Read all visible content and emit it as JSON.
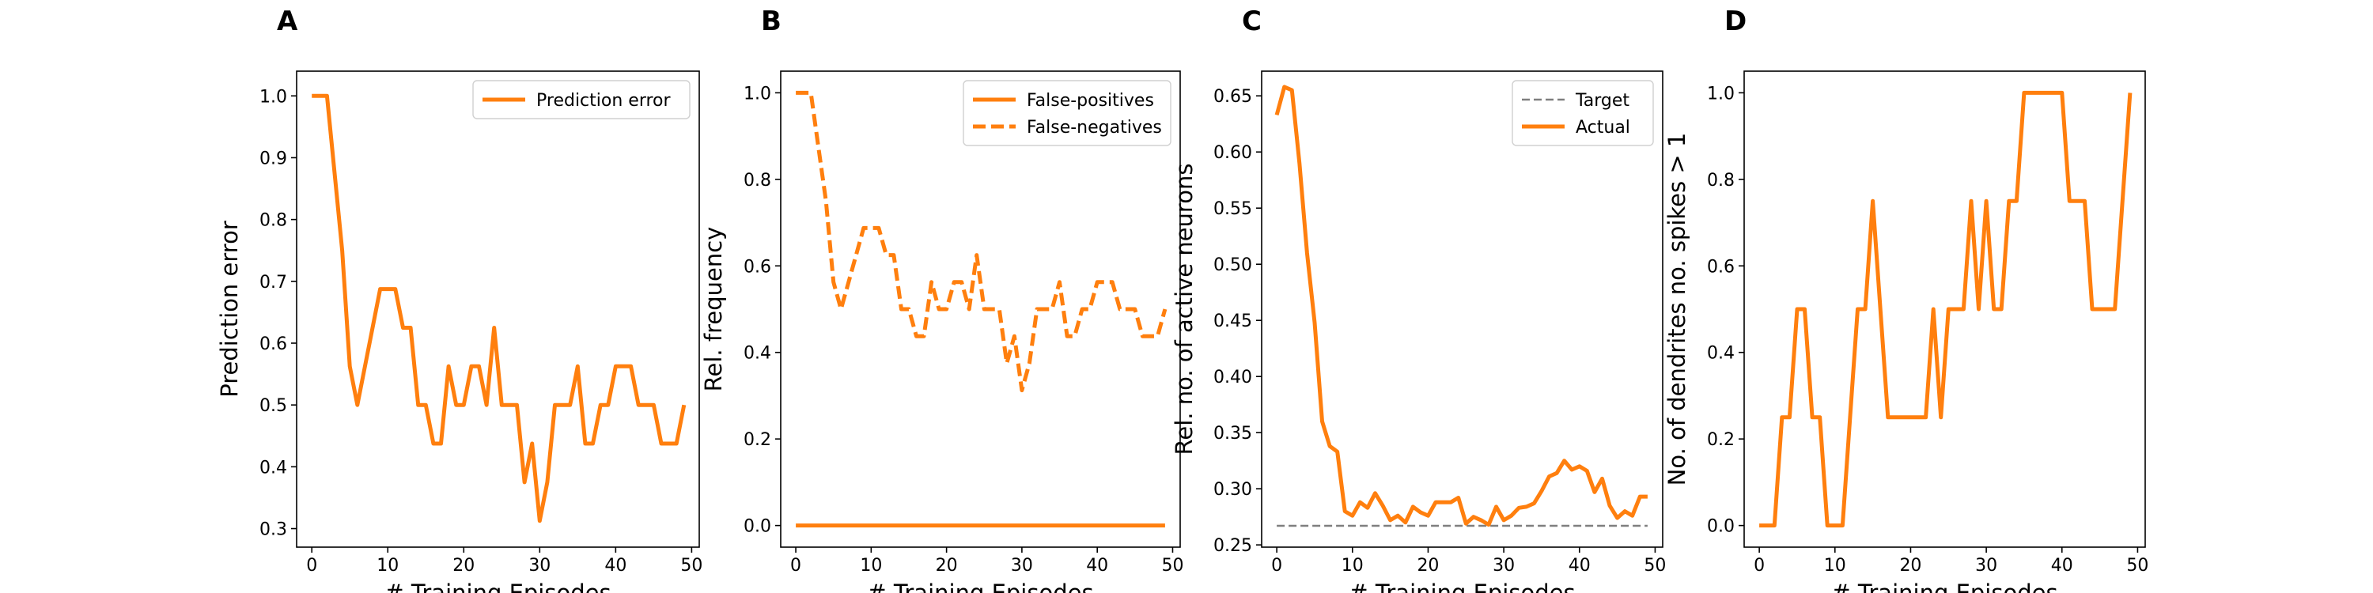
{
  "figure": {
    "accent_color": "#ff7f0e",
    "target_line_color": "#7f7f7f"
  },
  "chart_data": [
    {
      "panel": "A",
      "type": "line",
      "xlabel": "# Training Episodes",
      "ylabel": "Prediction error",
      "xlim": [
        -2,
        51
      ],
      "ylim": [
        0.27,
        1.04
      ],
      "xticks": [
        0,
        10,
        20,
        30,
        40,
        50
      ],
      "yticks": [
        0.3,
        0.4,
        0.5,
        0.6,
        0.7,
        0.8,
        0.9,
        1.0
      ],
      "ytick_labels": [
        "0.3",
        "0.4",
        "0.5",
        "0.6",
        "0.7",
        "0.8",
        "0.9",
        "1.0"
      ],
      "legend_position": "top-right",
      "x": [
        0,
        1,
        2,
        3,
        4,
        5,
        6,
        7,
        8,
        9,
        10,
        11,
        12,
        13,
        14,
        15,
        16,
        17,
        18,
        19,
        20,
        21,
        22,
        23,
        24,
        25,
        26,
        27,
        28,
        29,
        30,
        31,
        32,
        33,
        34,
        35,
        36,
        37,
        38,
        39,
        40,
        41,
        42,
        43,
        44,
        45,
        46,
        47,
        48,
        49
      ],
      "series": [
        {
          "name": "Prediction error",
          "style": "solid",
          "color": "#ff7f0e",
          "values": [
            1.0,
            1.0,
            1.0,
            0.875,
            0.75,
            0.5625,
            0.5,
            0.5625,
            0.625,
            0.6875,
            0.6875,
            0.6875,
            0.625,
            0.625,
            0.5,
            0.5,
            0.4375,
            0.4375,
            0.5625,
            0.5,
            0.5,
            0.5625,
            0.5625,
            0.5,
            0.625,
            0.5,
            0.5,
            0.5,
            0.375,
            0.4375,
            0.3125,
            0.375,
            0.5,
            0.5,
            0.5,
            0.5625,
            0.4375,
            0.4375,
            0.5,
            0.5,
            0.5625,
            0.5625,
            0.5625,
            0.5,
            0.5,
            0.5,
            0.4375,
            0.4375,
            0.4375,
            0.5
          ]
        }
      ]
    },
    {
      "panel": "B",
      "type": "line",
      "xlabel": "# Training Episodes",
      "ylabel": "Rel. frequency",
      "xlim": [
        -2,
        51
      ],
      "ylim": [
        -0.05,
        1.05
      ],
      "xticks": [
        0,
        10,
        20,
        30,
        40,
        50
      ],
      "yticks": [
        0.0,
        0.2,
        0.4,
        0.6,
        0.8,
        1.0
      ],
      "ytick_labels": [
        "0.0",
        "0.2",
        "0.4",
        "0.6",
        "0.8",
        "1.0"
      ],
      "legend_position": "top-right",
      "x": [
        0,
        1,
        2,
        3,
        4,
        5,
        6,
        7,
        8,
        9,
        10,
        11,
        12,
        13,
        14,
        15,
        16,
        17,
        18,
        19,
        20,
        21,
        22,
        23,
        24,
        25,
        26,
        27,
        28,
        29,
        30,
        31,
        32,
        33,
        34,
        35,
        36,
        37,
        38,
        39,
        40,
        41,
        42,
        43,
        44,
        45,
        46,
        47,
        48,
        49
      ],
      "series": [
        {
          "name": "False-positives",
          "style": "solid",
          "color": "#ff7f0e",
          "values": [
            0,
            0,
            0,
            0,
            0,
            0,
            0,
            0,
            0,
            0,
            0,
            0,
            0,
            0,
            0,
            0,
            0,
            0,
            0,
            0,
            0,
            0,
            0,
            0,
            0,
            0,
            0,
            0,
            0,
            0,
            0,
            0,
            0,
            0,
            0,
            0,
            0,
            0,
            0,
            0,
            0,
            0,
            0,
            0,
            0,
            0,
            0,
            0,
            0,
            0
          ]
        },
        {
          "name": "False-negatives",
          "style": "dashed",
          "color": "#ff7f0e",
          "values": [
            1.0,
            1.0,
            1.0,
            0.875,
            0.75,
            0.5625,
            0.5,
            0.5625,
            0.625,
            0.6875,
            0.6875,
            0.6875,
            0.625,
            0.625,
            0.5,
            0.5,
            0.4375,
            0.4375,
            0.5625,
            0.5,
            0.5,
            0.5625,
            0.5625,
            0.5,
            0.625,
            0.5,
            0.5,
            0.5,
            0.375,
            0.4375,
            0.3125,
            0.375,
            0.5,
            0.5,
            0.5,
            0.5625,
            0.4375,
            0.4375,
            0.5,
            0.5,
            0.5625,
            0.5625,
            0.5625,
            0.5,
            0.5,
            0.5,
            0.4375,
            0.4375,
            0.4375,
            0.5
          ]
        }
      ]
    },
    {
      "panel": "C",
      "type": "line",
      "xlabel": "# Training Episodes",
      "ylabel": "Rel. no. of active neurons",
      "xlim": [
        -2,
        51
      ],
      "ylim": [
        0.248,
        0.672
      ],
      "xticks": [
        0,
        10,
        20,
        30,
        40,
        50
      ],
      "yticks": [
        0.25,
        0.3,
        0.35,
        0.4,
        0.45,
        0.5,
        0.55,
        0.6,
        0.65
      ],
      "ytick_labels": [
        "0.25",
        "0.30",
        "0.35",
        "0.40",
        "0.45",
        "0.50",
        "0.55",
        "0.60",
        "0.65"
      ],
      "legend_position": "top-right",
      "x": [
        0,
        1,
        2,
        3,
        4,
        5,
        6,
        7,
        8,
        9,
        10,
        11,
        12,
        13,
        14,
        15,
        16,
        17,
        18,
        19,
        20,
        21,
        22,
        23,
        24,
        25,
        26,
        27,
        28,
        29,
        30,
        31,
        32,
        33,
        34,
        35,
        36,
        37,
        38,
        39,
        40,
        41,
        42,
        43,
        44,
        45,
        46,
        47,
        48,
        49
      ],
      "series": [
        {
          "name": "Target",
          "style": "dashed-thin",
          "color": "#7f7f7f",
          "values": [
            0.267,
            0.267,
            0.267,
            0.267,
            0.267,
            0.267,
            0.267,
            0.267,
            0.267,
            0.267,
            0.267,
            0.267,
            0.267,
            0.267,
            0.267,
            0.267,
            0.267,
            0.267,
            0.267,
            0.267,
            0.267,
            0.267,
            0.267,
            0.267,
            0.267,
            0.267,
            0.267,
            0.267,
            0.267,
            0.267,
            0.267,
            0.267,
            0.267,
            0.267,
            0.267,
            0.267,
            0.267,
            0.267,
            0.267,
            0.267,
            0.267,
            0.267,
            0.267,
            0.267,
            0.267,
            0.267,
            0.267,
            0.267,
            0.267,
            0.267
          ]
        },
        {
          "name": "Actual",
          "style": "solid",
          "color": "#ff7f0e",
          "values": [
            0.633,
            0.658,
            0.655,
            0.59,
            0.51,
            0.448,
            0.36,
            0.338,
            0.333,
            0.28,
            0.276,
            0.288,
            0.283,
            0.296,
            0.285,
            0.272,
            0.276,
            0.27,
            0.284,
            0.279,
            0.276,
            0.288,
            0.288,
            0.288,
            0.292,
            0.269,
            0.275,
            0.272,
            0.268,
            0.284,
            0.272,
            0.276,
            0.283,
            0.284,
            0.287,
            0.298,
            0.311,
            0.314,
            0.325,
            0.317,
            0.32,
            0.316,
            0.297,
            0.309,
            0.285,
            0.274,
            0.28,
            0.276,
            0.293,
            0.293
          ]
        }
      ]
    },
    {
      "panel": "D",
      "type": "line",
      "xlabel": "# Training Episodes",
      "ylabel": "No. of dendrites no. spikes > 1",
      "xlim": [
        -2,
        51
      ],
      "ylim": [
        -0.05,
        1.05
      ],
      "xticks": [
        0,
        10,
        20,
        30,
        40,
        50
      ],
      "yticks": [
        0.0,
        0.2,
        0.4,
        0.6,
        0.8,
        1.0
      ],
      "ytick_labels": [
        "0.0",
        "0.2",
        "0.4",
        "0.6",
        "0.8",
        "1.0"
      ],
      "legend_position": "none",
      "x": [
        0,
        1,
        2,
        3,
        4,
        5,
        6,
        7,
        8,
        9,
        10,
        11,
        12,
        13,
        14,
        15,
        16,
        17,
        18,
        19,
        20,
        21,
        22,
        23,
        24,
        25,
        26,
        27,
        28,
        29,
        30,
        31,
        32,
        33,
        34,
        35,
        36,
        37,
        38,
        39,
        40,
        41,
        42,
        43,
        44,
        45,
        46,
        47,
        48,
        49
      ],
      "series": [
        {
          "style": "solid",
          "color": "#ff7f0e",
          "values": [
            0,
            0,
            0,
            0.25,
            0.25,
            0.5,
            0.5,
            0.25,
            0.25,
            0,
            0,
            0,
            0.25,
            0.5,
            0.5,
            0.75,
            0.5,
            0.25,
            0.25,
            0.25,
            0.25,
            0.25,
            0.25,
            0.5,
            0.25,
            0.5,
            0.5,
            0.5,
            0.75,
            0.5,
            0.75,
            0.5,
            0.5,
            0.75,
            0.75,
            1.0,
            1.0,
            1.0,
            1.0,
            1.0,
            1.0,
            0.75,
            0.75,
            0.75,
            0.5,
            0.5,
            0.5,
            0.5,
            0.75,
            1.0
          ]
        }
      ]
    }
  ]
}
